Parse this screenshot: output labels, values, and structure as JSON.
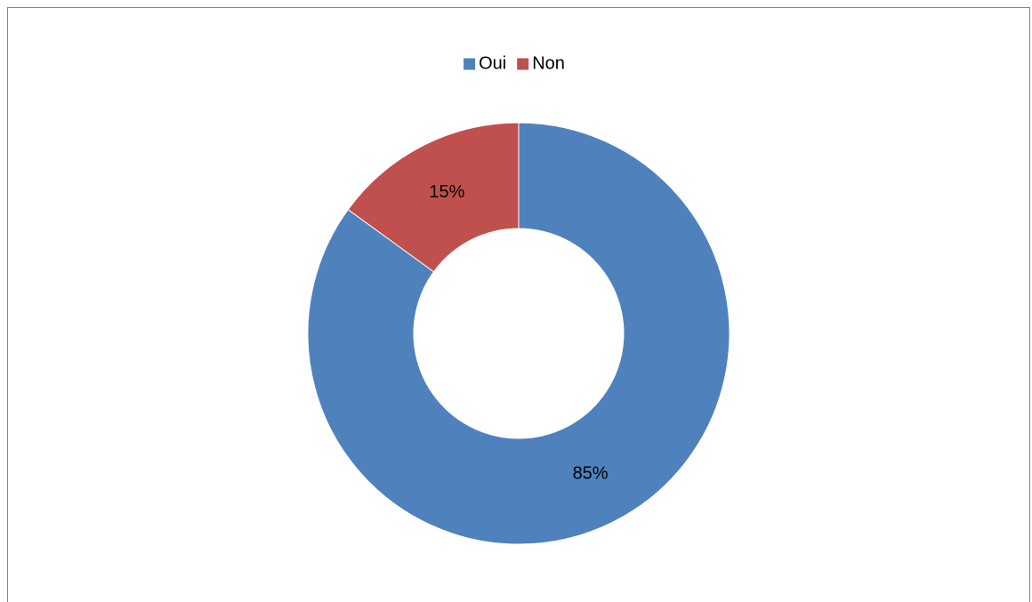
{
  "chart_data": {
    "type": "donut",
    "categories": [
      "Oui",
      "Non"
    ],
    "values": [
      85,
      15
    ],
    "value_labels": [
      "85%",
      "15%"
    ],
    "colors": [
      "#4f81bd",
      "#c0504d"
    ],
    "legend": "top"
  }
}
